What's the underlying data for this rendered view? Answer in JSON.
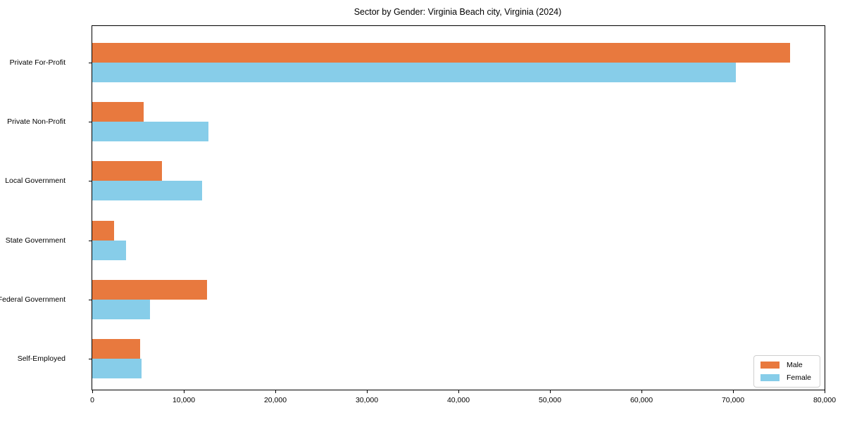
{
  "title": "Sector by Gender: Virginia Beach city, Virginia (2024)",
  "colors": {
    "male": "#E8793E",
    "female": "#87CDE9",
    "spine": "#000000",
    "legend_border": "#cfcfcf",
    "background": "#ffffff"
  },
  "chart_data": {
    "type": "bar",
    "orientation": "horizontal",
    "title": "Sector by Gender: Virginia Beach city, Virginia (2024)",
    "categories": [
      "Private For-Profit",
      "Private Non-Profit",
      "Local Government",
      "State Government",
      "Federal Government",
      "Self-Employed"
    ],
    "series": [
      {
        "name": "Male",
        "color": "#E8793E",
        "values": [
          76200,
          5600,
          7600,
          2400,
          12500,
          5200
        ]
      },
      {
        "name": "Female",
        "color": "#87CDE9",
        "values": [
          70300,
          12700,
          12000,
          3700,
          6300,
          5400
        ]
      }
    ],
    "xlabel": "",
    "ylabel": "",
    "xlim": [
      0,
      80000
    ],
    "xticks": [
      0,
      10000,
      20000,
      30000,
      40000,
      50000,
      60000,
      70000,
      80000
    ],
    "xtick_labels": [
      "0",
      "10,000",
      "20,000",
      "30,000",
      "40,000",
      "50,000",
      "60,000",
      "70,000",
      "80,000"
    ],
    "grid": false,
    "legend_position": "lower right"
  },
  "legend": {
    "items": [
      {
        "label": "Male"
      },
      {
        "label": "Female"
      }
    ]
  }
}
